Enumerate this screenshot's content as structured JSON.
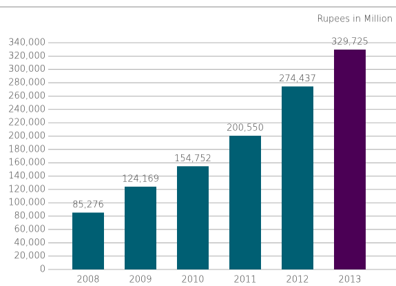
{
  "chart_data": {
    "type": "bar",
    "subtitle": "Rupees in Million",
    "categories": [
      "2008",
      "2009",
      "2010",
      "2011",
      "2012",
      "2013"
    ],
    "values": [
      85276,
      124169,
      154752,
      200550,
      274437,
      329725
    ],
    "value_labels": [
      "85,276",
      "124,169",
      "154,752",
      "200,550",
      "274,437",
      "329,725"
    ],
    "colors": [
      "#005f73",
      "#005f73",
      "#005f73",
      "#005f73",
      "#005f73",
      "#4b0055"
    ],
    "ylim": [
      0,
      340000
    ],
    "yticks": [
      {
        "value": 0,
        "label": "0"
      },
      {
        "value": 20000,
        "label": "20,000"
      },
      {
        "value": 40000,
        "label": "40,000"
      },
      {
        "value": 60000,
        "label": "60,000"
      },
      {
        "value": 80000,
        "label": "80,000"
      },
      {
        "value": 100000,
        "label": "100,000"
      },
      {
        "value": 120000,
        "label": "120,000"
      },
      {
        "value": 140000,
        "label": "140,000"
      },
      {
        "value": 160000,
        "label": "160,000"
      },
      {
        "value": 180000,
        "label": "180,000"
      },
      {
        "value": 200000,
        "label": "200,000"
      },
      {
        "value": 220000,
        "label": "220,000"
      },
      {
        "value": 240000,
        "label": "240,000"
      },
      {
        "value": 260000,
        "label": "260,000"
      },
      {
        "value": 280000,
        "label": "280,000"
      },
      {
        "value": 300000,
        "label": "300,000"
      },
      {
        "value": 320000,
        "label": "320,000"
      },
      {
        "value": 340000,
        "label": "340,000"
      }
    ],
    "grid": true
  }
}
